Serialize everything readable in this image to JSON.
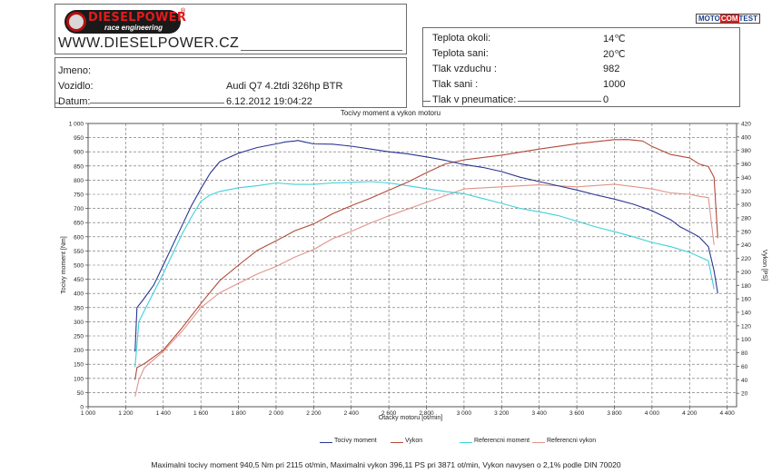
{
  "header": {
    "logo_text": "DIESELPOWER",
    "logo_registered": "®",
    "logo_tagline": "race engineering",
    "website": "WWW.DIESELPOWER.CZ",
    "motocomtest": [
      "MOTO",
      "COM",
      "TEST"
    ]
  },
  "vehicle_info": {
    "name_label": "Jmeno:",
    "name_value": "",
    "vehicle_label": "Vozidlo:",
    "vehicle_value": "Audi Q7 4.2tdi 326hp BTR",
    "date_label": "Datum:",
    "date_value": "6.12.2012 19:04:22"
  },
  "conditions": [
    {
      "label": "Teplota okoli:",
      "value": "14℃"
    },
    {
      "label": "Teplota sani:",
      "value": "20℃"
    },
    {
      "label": "Tlak vzduchu :",
      "value": "982"
    },
    {
      "label": "Tlak sani :",
      "value": "1000"
    },
    {
      "label": "Tlak v pneumatice:",
      "value": "0"
    }
  ],
  "colors": {
    "torque": "#2a3590",
    "power": "#b24a3a",
    "ref_torque": "#3fd0d8",
    "ref_power": "#e0938a",
    "grid": "#6a6a6a"
  },
  "chart_data": {
    "type": "line",
    "title": "Tocivy moment a vykon motoru",
    "xlabel": "Otacky motoru [ot/min]",
    "ylabel_left": "Tocivy moment [Nm]",
    "ylabel_right": "Vykon [PS]",
    "xlim": [
      1000,
      4450
    ],
    "ylim_left": [
      0,
      1000
    ],
    "ylim_right": [
      0,
      420
    ],
    "x_ticks": [
      1000,
      1200,
      1400,
      1600,
      1800,
      2000,
      2200,
      2400,
      2600,
      2800,
      3000,
      3200,
      3400,
      3600,
      3800,
      4000,
      4200,
      4400
    ],
    "x_tick_labels": [
      "1 000",
      "1 200",
      "1 400",
      "1 600",
      "1 800",
      "2 000",
      "2 200",
      "2 400",
      "2 600",
      "2 800",
      "3 000",
      "3 200",
      "3 400",
      "3 600",
      "3 800",
      "4 000",
      "4 200",
      "4 400"
    ],
    "y_left_ticks": [
      0,
      50,
      100,
      150,
      200,
      250,
      300,
      350,
      400,
      450,
      500,
      550,
      600,
      650,
      700,
      750,
      800,
      850,
      900,
      950,
      1000
    ],
    "y_left_tick_labels": [
      "0",
      "50",
      "100",
      "150",
      "200",
      "250",
      "300",
      "350",
      "400",
      "450",
      "500",
      "550",
      "600",
      "650",
      "700",
      "750",
      "800",
      "850",
      "900",
      "950",
      "1 000"
    ],
    "y_right_ticks": [
      20,
      40,
      60,
      80,
      100,
      120,
      140,
      160,
      180,
      200,
      220,
      240,
      260,
      280,
      300,
      320,
      340,
      360,
      380,
      400,
      420
    ],
    "grid": true,
    "legend_position": "bottom",
    "series": [
      {
        "name": "Tocivy moment",
        "axis": "left",
        "x": [
          1250,
          1260,
          1290,
          1350,
          1400,
          1450,
          1500,
          1550,
          1600,
          1650,
          1700,
          1750,
          1800,
          1850,
          1900,
          2000,
          2050,
          2100,
          2115,
          2150,
          2200,
          2300,
          2400,
          2500,
          2600,
          2700,
          2800,
          2900,
          3000,
          3100,
          3200,
          3300,
          3400,
          3500,
          3600,
          3700,
          3800,
          3900,
          4000,
          4100,
          4150,
          4200,
          4250,
          4300,
          4330,
          4350
        ],
        "y": [
          195,
          350,
          375,
          430,
          500,
          570,
          640,
          710,
          770,
          825,
          865,
          880,
          895,
          905,
          915,
          928,
          935,
          938,
          940,
          935,
          928,
          927,
          920,
          910,
          900,
          893,
          882,
          870,
          855,
          845,
          830,
          810,
          795,
          780,
          765,
          748,
          733,
          715,
          692,
          660,
          635,
          618,
          600,
          565,
          480,
          400
        ]
      },
      {
        "name": "Vykon",
        "axis": "right",
        "x": [
          1250,
          1260,
          1300,
          1400,
          1500,
          1600,
          1700,
          1800,
          1900,
          2000,
          2100,
          2200,
          2300,
          2400,
          2500,
          2600,
          2700,
          2800,
          2900,
          3000,
          3200,
          3400,
          3600,
          3800,
          3871,
          3950,
          4000,
          4100,
          4200,
          4250,
          4300,
          4330,
          4350
        ],
        "y": [
          40,
          58,
          64,
          84,
          117,
          153,
          187,
          210,
          232,
          246,
          261,
          271,
          286,
          298,
          309,
          321,
          333,
          347,
          360,
          366,
          373,
          382,
          390,
          396,
          396.11,
          394,
          386,
          374,
          369,
          360,
          356,
          340,
          250
        ]
      },
      {
        "name": "Referencni moment",
        "axis": "left",
        "x": [
          1250,
          1270,
          1300,
          1350,
          1400,
          1450,
          1500,
          1550,
          1600,
          1650,
          1700,
          1800,
          1900,
          2000,
          2100,
          2200,
          2300,
          2400,
          2500,
          2600,
          2700,
          2800,
          2900,
          3000,
          3100,
          3200,
          3300,
          3400,
          3500,
          3600,
          3700,
          3800,
          3900,
          4000,
          4100,
          4200,
          4250,
          4300,
          4330
        ],
        "y": [
          140,
          300,
          340,
          405,
          470,
          540,
          610,
          670,
          725,
          748,
          760,
          773,
          780,
          790,
          785,
          785,
          790,
          792,
          795,
          790,
          780,
          770,
          760,
          752,
          735,
          718,
          700,
          688,
          675,
          655,
          635,
          618,
          600,
          580,
          565,
          545,
          530,
          515,
          415
        ]
      },
      {
        "name": "Referencni vykon",
        "axis": "right",
        "x": [
          1250,
          1270,
          1300,
          1400,
          1500,
          1600,
          1700,
          1800,
          1900,
          2000,
          2100,
          2200,
          2300,
          2400,
          2500,
          2600,
          2700,
          2800,
          2900,
          3000,
          3200,
          3400,
          3600,
          3800,
          4000,
          4100,
          4200,
          4250,
          4300,
          4330
        ],
        "y": [
          15,
          40,
          58,
          82,
          112,
          147,
          169,
          183,
          197,
          208,
          222,
          233,
          249,
          260,
          272,
          283,
          293,
          303,
          313,
          323,
          326,
          329,
          326,
          330,
          323,
          317,
          315,
          312,
          310,
          240
        ]
      }
    ]
  },
  "footer": "Maximalni tocivy moment 940,5 Nm pri 2115 ot/min,  Maximalni vykon 396,11 PS pri 3871 ot/min,  Vykon navysen o 2,1% podle DIN 70020"
}
